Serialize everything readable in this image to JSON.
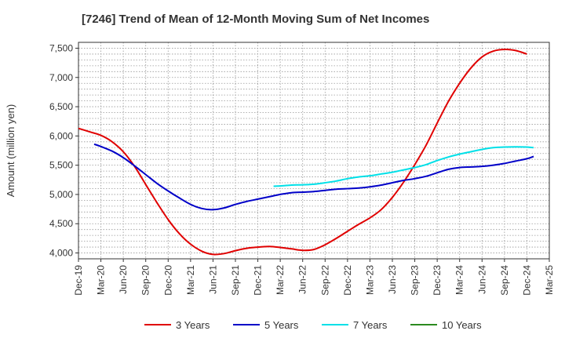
{
  "chart_data": {
    "type": "line",
    "title": "[7246]  Trend of Mean of 12-Month Moving Sum of Net Incomes",
    "xlabel": "",
    "ylabel": "Amount (million yen)",
    "x_ticks": [
      "Dec-19",
      "Mar-20",
      "Jun-20",
      "Sep-20",
      "Dec-20",
      "Mar-21",
      "Jun-21",
      "Sep-21",
      "Dec-21",
      "Mar-22",
      "Jun-22",
      "Sep-22",
      "Dec-22",
      "Mar-23",
      "Jun-23",
      "Sep-23",
      "Dec-23",
      "Mar-24",
      "Jun-24",
      "Sep-24",
      "Dec-24",
      "Mar-25"
    ],
    "y_ticks": [
      "4,000",
      "4,500",
      "5,000",
      "5,500",
      "6,000",
      "6,500",
      "7,000",
      "7,500"
    ],
    "ylim": [
      3900,
      7600
    ],
    "xlim": [
      0,
      21
    ],
    "grid": true,
    "legend_position": "bottom",
    "series": [
      {
        "name": "3 Years",
        "color": "#e00000",
        "points": [
          [
            0,
            6130
          ],
          [
            0.5,
            6070
          ],
          [
            1,
            6010
          ],
          [
            1.5,
            5900
          ],
          [
            2,
            5730
          ],
          [
            2.5,
            5480
          ],
          [
            3,
            5170
          ],
          [
            3.5,
            4860
          ],
          [
            4,
            4570
          ],
          [
            4.5,
            4330
          ],
          [
            5,
            4150
          ],
          [
            5.5,
            4030
          ],
          [
            6,
            3975
          ],
          [
            6.5,
            3990
          ],
          [
            7,
            4040
          ],
          [
            7.5,
            4080
          ],
          [
            8,
            4100
          ],
          [
            8.5,
            4110
          ],
          [
            9,
            4095
          ],
          [
            9.5,
            4070
          ],
          [
            10,
            4045
          ],
          [
            10.5,
            4060
          ],
          [
            11,
            4140
          ],
          [
            11.5,
            4250
          ],
          [
            12,
            4370
          ],
          [
            12.5,
            4490
          ],
          [
            13,
            4600
          ],
          [
            13.5,
            4740
          ],
          [
            14,
            4950
          ],
          [
            14.5,
            5210
          ],
          [
            15,
            5510
          ],
          [
            15.5,
            5840
          ],
          [
            16,
            6220
          ],
          [
            16.5,
            6590
          ],
          [
            17,
            6900
          ],
          [
            17.5,
            7160
          ],
          [
            18,
            7350
          ],
          [
            18.5,
            7450
          ],
          [
            19,
            7480
          ],
          [
            19.5,
            7460
          ],
          [
            20,
            7400
          ]
        ]
      },
      {
        "name": "5 Years",
        "color": "#0000c8",
        "points": [
          [
            0.7,
            5860
          ],
          [
            1,
            5820
          ],
          [
            1.5,
            5740
          ],
          [
            2,
            5630
          ],
          [
            2.5,
            5490
          ],
          [
            3,
            5340
          ],
          [
            3.5,
            5190
          ],
          [
            4,
            5060
          ],
          [
            4.5,
            4940
          ],
          [
            5,
            4830
          ],
          [
            5.5,
            4760
          ],
          [
            6,
            4740
          ],
          [
            6.5,
            4770
          ],
          [
            7,
            4830
          ],
          [
            7.5,
            4880
          ],
          [
            8,
            4920
          ],
          [
            8.5,
            4960
          ],
          [
            9,
            5000
          ],
          [
            9.5,
            5030
          ],
          [
            10,
            5040
          ],
          [
            10.5,
            5050
          ],
          [
            11,
            5070
          ],
          [
            11.5,
            5090
          ],
          [
            12,
            5100
          ],
          [
            12.5,
            5110
          ],
          [
            13,
            5130
          ],
          [
            13.5,
            5160
          ],
          [
            14,
            5200
          ],
          [
            14.5,
            5240
          ],
          [
            15,
            5270
          ],
          [
            15.5,
            5310
          ],
          [
            16,
            5370
          ],
          [
            16.5,
            5430
          ],
          [
            17,
            5460
          ],
          [
            17.5,
            5470
          ],
          [
            18,
            5480
          ],
          [
            18.5,
            5500
          ],
          [
            19,
            5530
          ],
          [
            19.5,
            5570
          ],
          [
            20,
            5610
          ],
          [
            20.3,
            5650
          ]
        ]
      },
      {
        "name": "7 Years",
        "color": "#00e0e8",
        "points": [
          [
            8.7,
            5140
          ],
          [
            9,
            5145
          ],
          [
            9.5,
            5160
          ],
          [
            10,
            5165
          ],
          [
            10.5,
            5175
          ],
          [
            11,
            5200
          ],
          [
            11.5,
            5230
          ],
          [
            12,
            5270
          ],
          [
            12.5,
            5300
          ],
          [
            13,
            5320
          ],
          [
            13.5,
            5350
          ],
          [
            14,
            5380
          ],
          [
            14.5,
            5420
          ],
          [
            15,
            5460
          ],
          [
            15.5,
            5510
          ],
          [
            16,
            5580
          ],
          [
            16.5,
            5640
          ],
          [
            17,
            5690
          ],
          [
            17.5,
            5730
          ],
          [
            18,
            5770
          ],
          [
            18.5,
            5800
          ],
          [
            19,
            5810
          ],
          [
            19.5,
            5815
          ],
          [
            20,
            5810
          ],
          [
            20.3,
            5800
          ]
        ]
      },
      {
        "name": "10 Years",
        "color": "#2c8a1f",
        "points": []
      }
    ]
  }
}
